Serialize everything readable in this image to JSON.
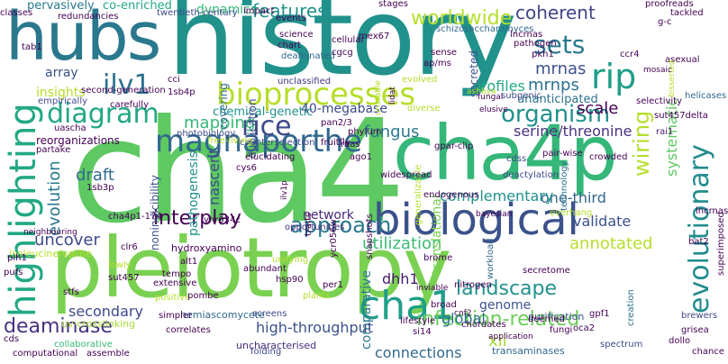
{
  "words": [
    {
      "text": "cha4",
      "color": "#5ec962"
    },
    {
      "text": "history",
      "color": "#21918c"
    },
    {
      "text": "pleiotropy",
      "color": "#7ad151"
    },
    {
      "text": "hubs",
      "color": "#2a788e"
    },
    {
      "text": "cha4p",
      "color": "#35b779"
    },
    {
      "text": "biological",
      "color": "#3b528b"
    },
    {
      "text": "magnaporthe",
      "color": "#31688e"
    },
    {
      "text": "highlighting",
      "color": "#22a884"
    },
    {
      "text": "bioprocesses",
      "color": "#b5de2b"
    },
    {
      "text": "diagram",
      "color": "#22a884"
    },
    {
      "text": "cha1",
      "color": "#1f9e89"
    },
    {
      "text": "rip",
      "color": "#1f9e89"
    },
    {
      "text": "ilv1",
      "color": "#2c728e"
    },
    {
      "text": "rice",
      "color": "#3e4989"
    },
    {
      "text": "evolutionary",
      "color": "#228c8d"
    },
    {
      "text": "organism",
      "color": "#21918c"
    },
    {
      "text": "wiring",
      "color": "#b5de2b"
    },
    {
      "text": "worldwide",
      "color": "#b5de2b"
    },
    {
      "text": "approach",
      "color": "#2a788e"
    },
    {
      "text": "interplay",
      "color": "#440154"
    },
    {
      "text": "landscape",
      "color": "#21918c"
    },
    {
      "text": "infection-related",
      "color": "#6ccd5a"
    },
    {
      "text": "sets",
      "color": "#2a788e"
    },
    {
      "text": "features",
      "color": "#21918c"
    },
    {
      "text": "coherent",
      "color": "#414487"
    },
    {
      "text": "mrnas",
      "color": "#3b528b"
    },
    {
      "text": "mrnps",
      "color": "#2c728e"
    },
    {
      "text": "profiles",
      "color": "#22a884"
    },
    {
      "text": "fungus",
      "color": "#2a788e"
    },
    {
      "text": "mapping",
      "color": "#35b779"
    },
    {
      "text": "evolution",
      "color": "#2a788e"
    },
    {
      "text": "draft",
      "color": "#31688e"
    },
    {
      "text": "uncover",
      "color": "#3e4989"
    },
    {
      "text": "deaminase",
      "color": "#46327e"
    },
    {
      "text": "systematic",
      "color": "#5ec962"
    },
    {
      "text": "utilization",
      "color": "#3bbb75"
    },
    {
      "text": "annotated",
      "color": "#b5de2b"
    },
    {
      "text": "xii",
      "color": "#a5db36"
    },
    {
      "text": "dhh1",
      "color": "#481a6c"
    },
    {
      "text": "global",
      "color": "#2c728e"
    },
    {
      "text": "comparative",
      "color": "#2a788e"
    },
    {
      "text": "nascent",
      "color": "#3e4989"
    },
    {
      "text": "pathogenesis",
      "color": "#21918c"
    },
    {
      "text": "40-megabase",
      "color": "#3e4989"
    },
    {
      "text": "scale",
      "color": "#440154"
    },
    {
      "text": "serine/threonine",
      "color": "#46327e"
    },
    {
      "text": "translational",
      "color": "#7ad151"
    },
    {
      "text": "one-third",
      "color": "#31688e"
    },
    {
      "text": "validate",
      "color": "#3b528b"
    },
    {
      "text": "complementary",
      "color": "#21918c"
    },
    {
      "text": "network",
      "color": "#482878"
    },
    {
      "text": "secondary",
      "color": "#3e4989"
    },
    {
      "text": "high-throughput",
      "color": "#3b528b"
    },
    {
      "text": "connections",
      "color": "#31688e"
    },
    {
      "text": "genome",
      "color": "#3b528b"
    },
    {
      "text": "dynamics",
      "color": "#35b779"
    },
    {
      "text": "pervasively",
      "color": "#2a788e"
    },
    {
      "text": "co-enriched",
      "color": "#22a884"
    },
    {
      "text": "insights",
      "color": "#b5de2b"
    },
    {
      "text": "array",
      "color": "#3b528b"
    },
    {
      "text": "reorganizations",
      "color": "#440154"
    },
    {
      "text": "chemical-genetic",
      "color": "#21918c"
    },
    {
      "text": "nonindicibility",
      "color": "#3b528b"
    },
    {
      "text": "unanticipated",
      "color": "#2c728e"
    },
    {
      "text": "duplication",
      "color": "#3e4989"
    },
    {
      "text": "covering",
      "color": "#31688e"
    },
    {
      "text": "hydroxyamino",
      "color": "#440154"
    },
    {
      "text": "uv-crosslinking",
      "color": "#a5db36"
    },
    {
      "text": "isoleucine/valine",
      "color": "#b5de2b"
    },
    {
      "text": "fruitfly",
      "color": "#440154"
    },
    {
      "text": "counterselection",
      "color": "#3e4989"
    },
    {
      "text": "secreted",
      "color": "#3b528b"
    },
    {
      "text": "deaminated",
      "color": "#31688e"
    },
    {
      "text": "unclassified",
      "color": "#46327e"
    },
    {
      "text": "uncharacterised",
      "color": "#472d7b"
    },
    {
      "text": "hemiascomycete",
      "color": "#31688e"
    },
    {
      "text": "collaborative",
      "color": "#35b779"
    },
    {
      "text": "twentieth-century",
      "color": "#3e4989"
    },
    {
      "text": "second-generation",
      "color": "#440154"
    },
    {
      "text": "schizosaccharomyces",
      "color": "#31688e"
    },
    {
      "text": "transaminases",
      "color": "#31688e"
    },
    {
      "text": "purification",
      "color": "#3b528b"
    },
    {
      "text": "lifestyle",
      "color": "#440154"
    },
    {
      "text": "chordates",
      "color": "#440154"
    },
    {
      "text": "deactylation",
      "color": "#3e4989"
    },
    {
      "text": "generalizable",
      "color": "#b5de2b"
    },
    {
      "text": "subgenic",
      "color": "#3e4989"
    },
    {
      "text": "redundancies",
      "color": "#440154"
    },
    {
      "text": "empirically",
      "color": "#3e4989"
    },
    {
      "text": "photobiology",
      "color": "#3e4989"
    },
    {
      "text": "free-living",
      "color": "#b5de2b"
    },
    {
      "text": "opportunities",
      "color": "#46327e"
    },
    {
      "text": "neighbouring",
      "color": "#440154"
    },
    {
      "text": "workload",
      "color": "#31688e"
    },
    {
      "text": "technology",
      "color": "#2c728e"
    },
    {
      "text": "superimposed",
      "color": "#440154"
    },
    {
      "text": "application",
      "color": "#440154"
    },
    {
      "text": "selectivity",
      "color": "#440154"
    },
    {
      "text": "tackled",
      "color": "#440154"
    },
    {
      "text": "proofreads",
      "color": "#440154"
    },
    {
      "text": "creation",
      "color": "#2c728e"
    },
    {
      "text": "spectrum",
      "color": "#3e4989"
    },
    {
      "text": "asexual",
      "color": "#440154"
    },
    {
      "text": "bisserted",
      "color": "#b5de2b"
    },
    {
      "text": "mosaic",
      "color": "#440154"
    },
    {
      "text": "helicases",
      "color": "#31688e"
    },
    {
      "text": "sut457delta",
      "color": "#440154"
    },
    {
      "text": "rai1",
      "color": "#481a6c"
    },
    {
      "text": "crowded",
      "color": "#440154"
    },
    {
      "text": "gpar-clip",
      "color": "#440154"
    },
    {
      "text": "bayesian",
      "color": "#440154"
    },
    {
      "text": "overhang",
      "color": "#b5de2b"
    },
    {
      "text": "pair-wise",
      "color": "#440154"
    },
    {
      "text": "cdss",
      "color": "#3e4989"
    },
    {
      "text": "evolved",
      "color": "#b5de2b"
    },
    {
      "text": "ashbya",
      "color": "#b5de2b"
    },
    {
      "text": "brewers",
      "color": "#3e4989"
    },
    {
      "text": "grisea",
      "color": "#440154"
    },
    {
      "text": "dollo",
      "color": "#440154"
    },
    {
      "text": "lncrnas",
      "color": "#440154"
    },
    {
      "text": "bat2",
      "color": "#440154"
    },
    {
      "text": "secretome",
      "color": "#440154"
    },
    {
      "text": "nitrogen",
      "color": "#440154"
    },
    {
      "text": "broad",
      "color": "#440154"
    },
    {
      "text": "si14",
      "color": "#440154"
    },
    {
      "text": "cnf2",
      "color": "#440154"
    },
    {
      "text": "deemed",
      "color": "#440154"
    },
    {
      "text": "fungi",
      "color": "#440154"
    },
    {
      "text": "gpf1",
      "color": "#440154"
    },
    {
      "text": "oca2",
      "color": "#440154"
    },
    {
      "text": "chance",
      "color": "#440154"
    },
    {
      "text": "folding",
      "color": "#3e4989"
    },
    {
      "text": "screens",
      "color": "#3e4989"
    },
    {
      "text": "plants",
      "color": "#b5de2b"
    },
    {
      "text": "hsp90",
      "color": "#440154"
    },
    {
      "text": "per1",
      "color": "#440154"
    },
    {
      "text": "abundant",
      "color": "#440154"
    },
    {
      "text": "unifying",
      "color": "#b5de2b"
    },
    {
      "text": "extensive",
      "color": "#440154"
    },
    {
      "text": "positive",
      "color": "#b5de2b"
    },
    {
      "text": "simpler",
      "color": "#440154"
    },
    {
      "text": "correlates",
      "color": "#440154"
    },
    {
      "text": "lowly",
      "color": "#b5de2b"
    },
    {
      "text": "sut457",
      "color": "#440154"
    },
    {
      "text": "stfs",
      "color": "#440154"
    },
    {
      "text": "pombe",
      "color": "#440154"
    },
    {
      "text": "tempo",
      "color": "#440154"
    },
    {
      "text": "alt1",
      "color": "#440154"
    },
    {
      "text": "clr6",
      "color": "#440154"
    },
    {
      "text": "pih1",
      "color": "#440154"
    },
    {
      "text": "pufs",
      "color": "#440154"
    },
    {
      "text": "yhr034c",
      "color": "#440154"
    },
    {
      "text": "cha4p1-174",
      "color": "#440154"
    },
    {
      "text": "1sb3p",
      "color": "#440154"
    },
    {
      "text": "uascha",
      "color": "#440154"
    },
    {
      "text": "partake",
      "color": "#440154"
    },
    {
      "text": "elucidating",
      "color": "#440154"
    },
    {
      "text": "cys6",
      "color": "#440154"
    },
    {
      "text": "ago1",
      "color": "#440154"
    },
    {
      "text": "rnas",
      "color": "#440154"
    },
    {
      "text": "phylum",
      "color": "#440154"
    },
    {
      "text": "pan2/3",
      "color": "#440154"
    },
    {
      "text": "widespread",
      "color": "#440154"
    },
    {
      "text": "snapshots",
      "color": "#440154"
    },
    {
      "text": "ycr056w",
      "color": "#440154"
    },
    {
      "text": "traits",
      "color": "#440154"
    },
    {
      "text": "assemble",
      "color": "#440154"
    },
    {
      "text": "computational",
      "color": "#440154"
    },
    {
      "text": "cds",
      "color": "#440154"
    },
    {
      "text": "tab1",
      "color": "#440154"
    },
    {
      "text": "classes",
      "color": "#440154"
    },
    {
      "text": "1sb4p",
      "color": "#440154"
    },
    {
      "text": "cci",
      "color": "#440154"
    },
    {
      "text": "carefully",
      "color": "#440154"
    },
    {
      "text": "impact",
      "color": "#440154"
    },
    {
      "text": "science",
      "color": "#440154"
    },
    {
      "text": "chart",
      "color": "#440154"
    },
    {
      "text": "cgcg",
      "color": "#440154"
    },
    {
      "text": "cellular",
      "color": "#440154"
    },
    {
      "text": "mex67",
      "color": "#440154"
    },
    {
      "text": "events",
      "color": "#440154"
    },
    {
      "text": "stages",
      "color": "#440154"
    },
    {
      "text": "lncrnas",
      "color": "#440154"
    },
    {
      "text": "pathogen",
      "color": "#440154"
    },
    {
      "text": "sense",
      "color": "#440154"
    },
    {
      "text": "ap/ms",
      "color": "#440154"
    },
    {
      "text": "pkh1",
      "color": "#440154"
    },
    {
      "text": "ccr4",
      "color": "#440154"
    },
    {
      "text": "g-c",
      "color": "#440154"
    },
    {
      "text": "brome",
      "color": "#440154"
    },
    {
      "text": "fungal",
      "color": "#440154"
    },
    {
      "text": "diverse",
      "color": "#b5de2b"
    },
    {
      "text": "endogenous",
      "color": "#440154"
    },
    {
      "text": "unstable",
      "color": "#b5de2b"
    },
    {
      "text": "lidat",
      "color": "#440154"
    },
    {
      "text": "elusive",
      "color": "#440154"
    },
    {
      "text": "inviable",
      "color": "#440154"
    },
    {
      "text": "ilv1p",
      "color": "#440154"
    }
  ]
}
